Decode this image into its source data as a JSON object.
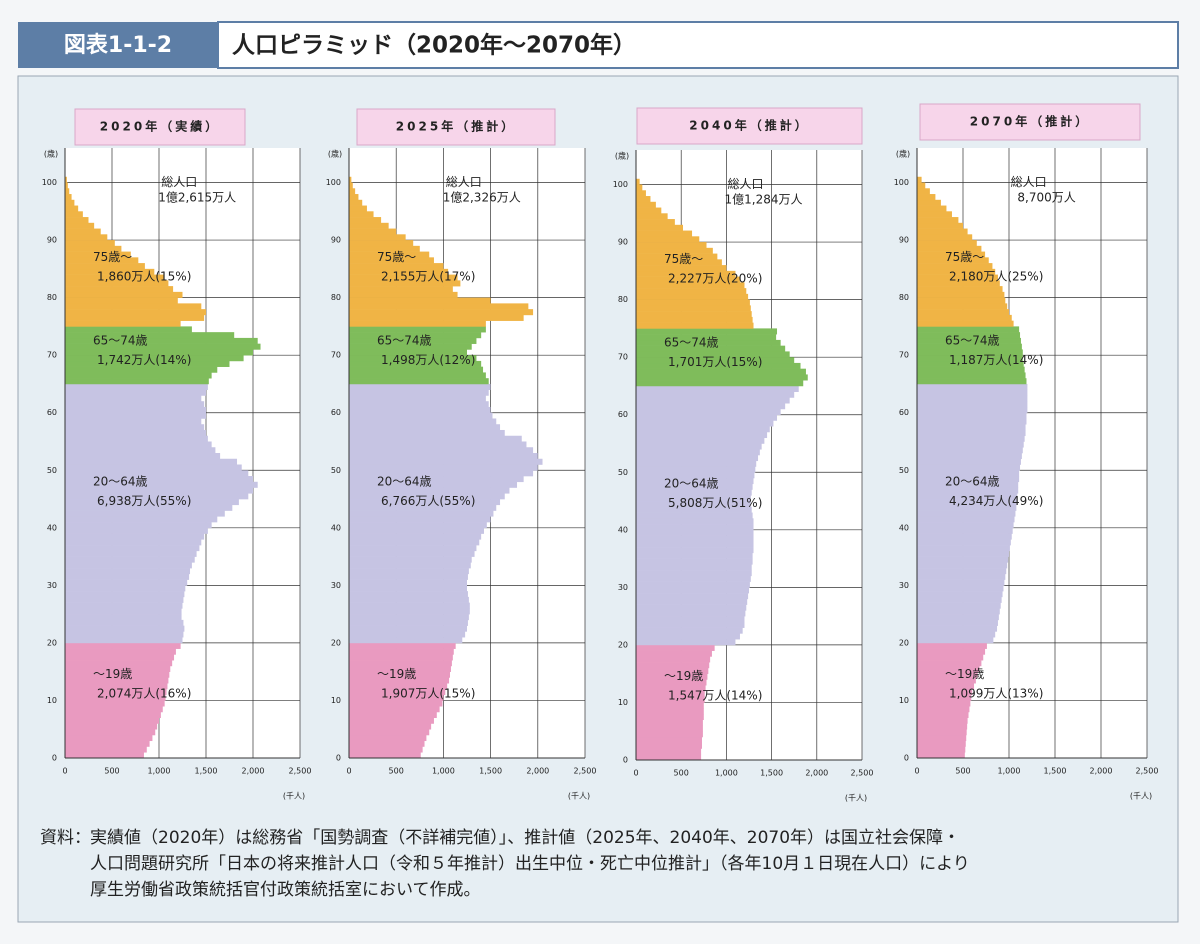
{
  "header": {
    "figure_id": "図表1-1-2",
    "title": "人口ピラミッド（2020年～2070年）"
  },
  "chart_data": [
    {
      "type": "bar",
      "orientation": "horizontal",
      "title": "2020年（実績）",
      "ylabel": "(歳)",
      "xlabel": "(千人)",
      "total_name": "総人口",
      "total_value": "1億2,615万人",
      "ages": [
        0,
        1,
        2,
        3,
        4,
        5,
        6,
        7,
        8,
        9,
        10,
        11,
        12,
        13,
        14,
        15,
        16,
        17,
        18,
        19,
        20,
        21,
        22,
        23,
        24,
        25,
        26,
        27,
        28,
        29,
        30,
        31,
        32,
        33,
        34,
        35,
        36,
        37,
        38,
        39,
        40,
        41,
        42,
        43,
        44,
        45,
        46,
        47,
        48,
        49,
        50,
        51,
        52,
        53,
        54,
        55,
        56,
        57,
        58,
        59,
        60,
        61,
        62,
        63,
        64,
        65,
        66,
        67,
        68,
        69,
        70,
        71,
        72,
        73,
        74,
        75,
        76,
        77,
        78,
        79,
        80,
        81,
        82,
        83,
        84,
        85,
        86,
        87,
        88,
        89,
        90,
        91,
        92,
        93,
        94,
        95,
        96,
        97,
        98,
        99,
        100
      ],
      "values": [
        840,
        870,
        900,
        930,
        960,
        980,
        1000,
        1020,
        1040,
        1060,
        1070,
        1080,
        1090,
        1100,
        1110,
        1120,
        1140,
        1160,
        1180,
        1230,
        1250,
        1260,
        1270,
        1260,
        1240,
        1240,
        1250,
        1260,
        1270,
        1280,
        1300,
        1320,
        1330,
        1350,
        1380,
        1400,
        1430,
        1450,
        1480,
        1520,
        1560,
        1620,
        1700,
        1780,
        1850,
        1950,
        2000,
        2050,
        2000,
        1950,
        1880,
        1830,
        1650,
        1600,
        1560,
        1520,
        1500,
        1480,
        1450,
        1500,
        1500,
        1480,
        1450,
        1500,
        1520,
        1530,
        1560,
        1620,
        1750,
        1900,
        2000,
        2080,
        2050,
        1800,
        1350,
        1230,
        1480,
        1500,
        1450,
        1200,
        1250,
        1150,
        1100,
        1050,
        950,
        850,
        780,
        700,
        600,
        530,
        450,
        380,
        310,
        250,
        190,
        140,
        100,
        70,
        45,
        30,
        20
      ],
      "groups": [
        {
          "name": "～19歳",
          "label": "2,074万人(16%)",
          "color": "#e99ac0",
          "from": 0,
          "to": 19
        },
        {
          "name": "20～64歳",
          "label": "6,938万人(55%)",
          "color": "#c6c4e3",
          "from": 20,
          "to": 64
        },
        {
          "name": "65～74歳",
          "label": "1,742万人(14%)",
          "color": "#7fbc5b",
          "from": 65,
          "to": 74
        },
        {
          "name": "75歳～",
          "label": "1,860万人(15%)",
          "color": "#f0b445",
          "from": 75,
          "to": 100
        }
      ],
      "xlim": [
        0,
        2500
      ],
      "xticks": [
        0,
        500,
        {
          "value": 1000,
          "label": "1,000"
        },
        {
          "value": 1500,
          "label": "1,500"
        },
        {
          "value": 2000,
          "label": "2,000"
        },
        {
          "value": 2500,
          "label": "2,500"
        }
      ],
      "ylim": [
        0,
        106
      ],
      "yticks": [
        0,
        10,
        20,
        30,
        40,
        50,
        60,
        70,
        80,
        90,
        100
      ],
      "grid": true
    },
    {
      "type": "bar",
      "orientation": "horizontal",
      "title": "2025年（推計）",
      "ylabel": "(歳)",
      "xlabel": "(千人)",
      "total_name": "総人口",
      "total_value": "1億2,326万人",
      "ages": [
        0,
        1,
        2,
        3,
        4,
        5,
        6,
        7,
        8,
        9,
        10,
        11,
        12,
        13,
        14,
        15,
        16,
        17,
        18,
        19,
        20,
        21,
        22,
        23,
        24,
        25,
        26,
        27,
        28,
        29,
        30,
        31,
        32,
        33,
        34,
        35,
        36,
        37,
        38,
        39,
        40,
        41,
        42,
        43,
        44,
        45,
        46,
        47,
        48,
        49,
        50,
        51,
        52,
        53,
        54,
        55,
        56,
        57,
        58,
        59,
        60,
        61,
        62,
        63,
        64,
        65,
        66,
        67,
        68,
        69,
        70,
        71,
        72,
        73,
        74,
        75,
        76,
        77,
        78,
        79,
        80,
        81,
        82,
        83,
        84,
        85,
        86,
        87,
        88,
        89,
        90,
        91,
        92,
        93,
        94,
        95,
        96,
        97,
        98,
        99,
        100
      ],
      "values": [
        760,
        780,
        800,
        820,
        850,
        870,
        900,
        930,
        960,
        990,
        1000,
        1020,
        1040,
        1060,
        1070,
        1080,
        1090,
        1100,
        1110,
        1130,
        1200,
        1230,
        1250,
        1260,
        1270,
        1280,
        1280,
        1270,
        1260,
        1250,
        1250,
        1260,
        1270,
        1290,
        1300,
        1330,
        1350,
        1380,
        1400,
        1430,
        1460,
        1500,
        1530,
        1560,
        1600,
        1650,
        1700,
        1780,
        1850,
        1950,
        2000,
        2050,
        2000,
        1950,
        1880,
        1830,
        1650,
        1600,
        1560,
        1520,
        1500,
        1480,
        1450,
        1480,
        1500,
        1480,
        1450,
        1420,
        1400,
        1350,
        1250,
        1300,
        1350,
        1400,
        1450,
        1450,
        1850,
        1950,
        1900,
        1500,
        1150,
        1100,
        1180,
        1150,
        1050,
        1000,
        900,
        850,
        750,
        680,
        600,
        500,
        420,
        340,
        260,
        190,
        140,
        100,
        65,
        40,
        25
      ],
      "groups": [
        {
          "name": "～19歳",
          "label": "1,907万人(15%)",
          "color": "#e99ac0",
          "from": 0,
          "to": 19
        },
        {
          "name": "20～64歳",
          "label": "6,766万人(55%)",
          "color": "#c6c4e3",
          "from": 20,
          "to": 64
        },
        {
          "name": "65～74歳",
          "label": "1,498万人(12%)",
          "color": "#7fbc5b",
          "from": 65,
          "to": 74
        },
        {
          "name": "75歳～",
          "label": "2,155万人(17%)",
          "color": "#f0b445",
          "from": 75,
          "to": 100
        }
      ],
      "xlim": [
        0,
        2500
      ],
      "xticks": [
        0,
        500,
        {
          "value": 1000,
          "label": "1,000"
        },
        {
          "value": 1500,
          "label": "1,500"
        },
        {
          "value": 2000,
          "label": "2,000"
        },
        {
          "value": 2500,
          "label": "2,500"
        }
      ],
      "ylim": [
        0,
        106
      ],
      "yticks": [
        0,
        10,
        20,
        30,
        40,
        50,
        60,
        70,
        80,
        90,
        100
      ],
      "grid": true
    },
    {
      "type": "bar",
      "orientation": "horizontal",
      "title": "2040年（推計）",
      "ylabel": "(歳)",
      "xlabel": "(千人)",
      "total_name": "総人口",
      "total_value": "1億1,284万人",
      "ages": [
        0,
        1,
        2,
        3,
        4,
        5,
        6,
        7,
        8,
        9,
        10,
        11,
        12,
        13,
        14,
        15,
        16,
        17,
        18,
        19,
        20,
        21,
        22,
        23,
        24,
        25,
        26,
        27,
        28,
        29,
        30,
        31,
        32,
        33,
        34,
        35,
        36,
        37,
        38,
        39,
        40,
        41,
        42,
        43,
        44,
        45,
        46,
        47,
        48,
        49,
        50,
        51,
        52,
        53,
        54,
        55,
        56,
        57,
        58,
        59,
        60,
        61,
        62,
        63,
        64,
        65,
        66,
        67,
        68,
        69,
        70,
        71,
        72,
        73,
        74,
        75,
        76,
        77,
        78,
        79,
        80,
        81,
        82,
        83,
        84,
        85,
        86,
        87,
        88,
        89,
        90,
        91,
        92,
        93,
        94,
        95,
        96,
        97,
        98,
        99,
        100
      ],
      "values": [
        720,
        720,
        730,
        730,
        740,
        740,
        740,
        750,
        750,
        750,
        760,
        760,
        770,
        780,
        790,
        800,
        810,
        820,
        840,
        870,
        1100,
        1150,
        1180,
        1200,
        1200,
        1210,
        1220,
        1230,
        1240,
        1250,
        1260,
        1270,
        1280,
        1280,
        1290,
        1290,
        1300,
        1300,
        1300,
        1300,
        1300,
        1300,
        1290,
        1280,
        1270,
        1270,
        1280,
        1290,
        1300,
        1310,
        1320,
        1330,
        1350,
        1370,
        1390,
        1420,
        1450,
        1480,
        1520,
        1560,
        1600,
        1650,
        1700,
        1750,
        1800,
        1850,
        1900,
        1880,
        1820,
        1750,
        1700,
        1650,
        1600,
        1550,
        1560,
        1300,
        1290,
        1280,
        1270,
        1260,
        1240,
        1220,
        1200,
        1150,
        1100,
        1000,
        950,
        900,
        850,
        780,
        700,
        620,
        520,
        430,
        350,
        280,
        220,
        160,
        110,
        70,
        40
      ],
      "groups": [
        {
          "name": "～19歳",
          "label": "1,547万人(14%)",
          "color": "#e99ac0",
          "from": 0,
          "to": 19
        },
        {
          "name": "20～64歳",
          "label": "5,808万人(51%)",
          "color": "#c6c4e3",
          "from": 20,
          "to": 64
        },
        {
          "name": "65～74歳",
          "label": "1,701万人(15%)",
          "color": "#7fbc5b",
          "from": 65,
          "to": 74
        },
        {
          "name": "75歳～",
          "label": "2,227万人(20%)",
          "color": "#f0b445",
          "from": 75,
          "to": 100
        }
      ],
      "xlim": [
        0,
        2500
      ],
      "xticks": [
        0,
        500,
        {
          "value": 1000,
          "label": "1,000"
        },
        {
          "value": 1500,
          "label": "1,500"
        },
        {
          "value": 2000,
          "label": "2,000"
        },
        {
          "value": 2500,
          "label": "2,500"
        }
      ],
      "ylim": [
        0,
        106
      ],
      "yticks": [
        0,
        10,
        20,
        30,
        40,
        50,
        60,
        70,
        80,
        90,
        100
      ],
      "grid": true
    },
    {
      "type": "bar",
      "orientation": "horizontal",
      "title": "2070年（推計）",
      "ylabel": "(歳)",
      "xlabel": "(千人)",
      "total_name": "総人口",
      "total_value": "8,700万人",
      "ages": [
        0,
        1,
        2,
        3,
        4,
        5,
        6,
        7,
        8,
        9,
        10,
        11,
        12,
        13,
        14,
        15,
        16,
        17,
        18,
        19,
        20,
        21,
        22,
        23,
        24,
        25,
        26,
        27,
        28,
        29,
        30,
        31,
        32,
        33,
        34,
        35,
        36,
        37,
        38,
        39,
        40,
        41,
        42,
        43,
        44,
        45,
        46,
        47,
        48,
        49,
        50,
        51,
        52,
        53,
        54,
        55,
        56,
        57,
        58,
        59,
        60,
        61,
        62,
        63,
        64,
        65,
        66,
        67,
        68,
        69,
        70,
        71,
        72,
        73,
        74,
        75,
        76,
        77,
        78,
        79,
        80,
        81,
        82,
        83,
        84,
        85,
        86,
        87,
        88,
        89,
        90,
        91,
        92,
        93,
        94,
        95,
        96,
        97,
        98,
        99,
        100
      ],
      "values": [
        520,
        525,
        530,
        535,
        540,
        545,
        550,
        560,
        570,
        580,
        590,
        600,
        620,
        640,
        660,
        680,
        700,
        720,
        740,
        760,
        830,
        850,
        870,
        880,
        890,
        900,
        910,
        920,
        930,
        940,
        950,
        960,
        970,
        980,
        990,
        1000,
        1010,
        1020,
        1030,
        1040,
        1050,
        1060,
        1070,
        1080,
        1080,
        1090,
        1100,
        1100,
        1110,
        1110,
        1120,
        1130,
        1140,
        1150,
        1160,
        1170,
        1180,
        1180,
        1190,
        1190,
        1200,
        1200,
        1200,
        1200,
        1200,
        1190,
        1180,
        1170,
        1160,
        1150,
        1150,
        1140,
        1130,
        1120,
        1110,
        1050,
        1030,
        1000,
        980,
        960,
        950,
        930,
        900,
        880,
        850,
        820,
        780,
        740,
        700,
        650,
        600,
        550,
        500,
        450,
        380,
        320,
        260,
        200,
        140,
        90,
        50
      ],
      "groups": [
        {
          "name": "～19歳",
          "label": "1,099万人(13%)",
          "color": "#e99ac0",
          "from": 0,
          "to": 19
        },
        {
          "name": "20～64歳",
          "label": "4,234万人(49%)",
          "color": "#c6c4e3",
          "from": 20,
          "to": 64
        },
        {
          "name": "65～74歳",
          "label": "1,187万人(14%)",
          "color": "#7fbc5b",
          "from": 65,
          "to": 74
        },
        {
          "name": "75歳～",
          "label": "2,180万人(25%)",
          "color": "#f0b445",
          "from": 75,
          "to": 100
        }
      ],
      "xlim": [
        0,
        2500
      ],
      "xticks": [
        0,
        500,
        {
          "value": 1000,
          "label": "1,000"
        },
        {
          "value": 1500,
          "label": "1,500"
        },
        {
          "value": 2000,
          "label": "2,000"
        },
        {
          "value": 2500,
          "label": "2,500"
        }
      ],
      "ylim": [
        0,
        106
      ],
      "yticks": [
        0,
        10,
        20,
        30,
        40,
        50,
        60,
        70,
        80,
        90,
        100
      ],
      "grid": true
    }
  ],
  "source": {
    "label": "資料：",
    "lines": [
      "実績値（2020年）は総務省「国勢調査（不詳補完値）」、推計値（2025年、2040年、2070年）は国立社会保障・",
      "人口問題研究所「日本の将来推計人口（令和５年推計）出生中位・死亡中位推計」（各年10月１日現在人口）により",
      "厚生労働省政策統括官付政策統括室において作成。"
    ]
  }
}
